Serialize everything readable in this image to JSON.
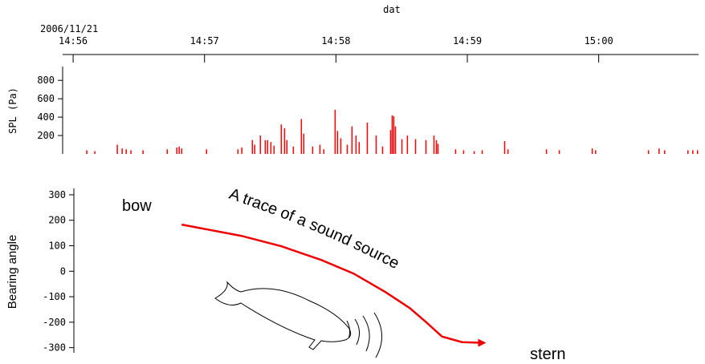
{
  "chart_data": [
    {
      "type": "bar",
      "xlabel": "dat",
      "date_label": "2006/11/21",
      "ylabel": "SPL (Pa)",
      "color": "#ff0000",
      "xlim": [
        895.92,
        900.76
      ],
      "xticks": [
        {
          "value": 896,
          "label": "14:56"
        },
        {
          "value": 897,
          "label": "14:57"
        },
        {
          "value": 898,
          "label": "14:58"
        },
        {
          "value": 899,
          "label": "14:59"
        },
        {
          "value": 900,
          "label": "15:00"
        }
      ],
      "ylim": [
        0,
        950
      ],
      "yticks": [
        200,
        400,
        600,
        800
      ],
      "x": [
        896.104,
        896.165,
        896.336,
        896.373,
        896.404,
        896.44,
        896.532,
        896.716,
        896.789,
        896.807,
        896.826,
        897.015,
        897.254,
        897.284,
        897.364,
        897.382,
        897.425,
        897.462,
        897.48,
        897.505,
        897.529,
        897.584,
        897.609,
        897.627,
        897.676,
        897.737,
        897.755,
        897.823,
        897.878,
        897.908,
        897.994,
        898.012,
        898.037,
        898.086,
        898.122,
        898.153,
        898.177,
        898.239,
        898.306,
        898.355,
        898.416,
        898.428,
        898.44,
        898.453,
        898.502,
        898.544,
        898.606,
        898.685,
        898.746,
        898.765,
        898.777,
        898.911,
        898.972,
        899.052,
        899.113,
        899.284,
        899.309,
        899.602,
        899.7,
        899.951,
        899.976,
        900.379,
        900.459,
        900.502,
        900.679,
        900.716,
        900.752
      ],
      "values": [
        40,
        30,
        100,
        60,
        50,
        40,
        40,
        50,
        70,
        80,
        60,
        50,
        50,
        70,
        150,
        100,
        200,
        150,
        150,
        130,
        90,
        320,
        280,
        150,
        80,
        380,
        220,
        80,
        100,
        50,
        480,
        250,
        170,
        100,
        300,
        200,
        130,
        340,
        200,
        80,
        260,
        420,
        410,
        300,
        160,
        200,
        160,
        150,
        200,
        150,
        110,
        50,
        40,
        30,
        40,
        140,
        50,
        50,
        40,
        60,
        40,
        40,
        60,
        40,
        40,
        40,
        40
      ]
    },
    {
      "type": "line",
      "ylabel": "Bearing angle",
      "color": "#ee0000",
      "xlim": [
        896.006,
        900.76
      ],
      "ylim": [
        -320,
        325
      ],
      "yticks": [
        300,
        200,
        100,
        0,
        -100,
        -200,
        -300
      ],
      "x": [
        896.826,
        897.278,
        897.584,
        897.89,
        898.135,
        898.379,
        898.563,
        898.685,
        898.807,
        898.96,
        899.131
      ],
      "values": [
        183,
        139,
        98,
        44,
        -9,
        -82,
        -145,
        -199,
        -256,
        -278,
        -281
      ],
      "annotations": [
        "bow",
        "A trace of a sound source",
        "stern"
      ]
    }
  ]
}
